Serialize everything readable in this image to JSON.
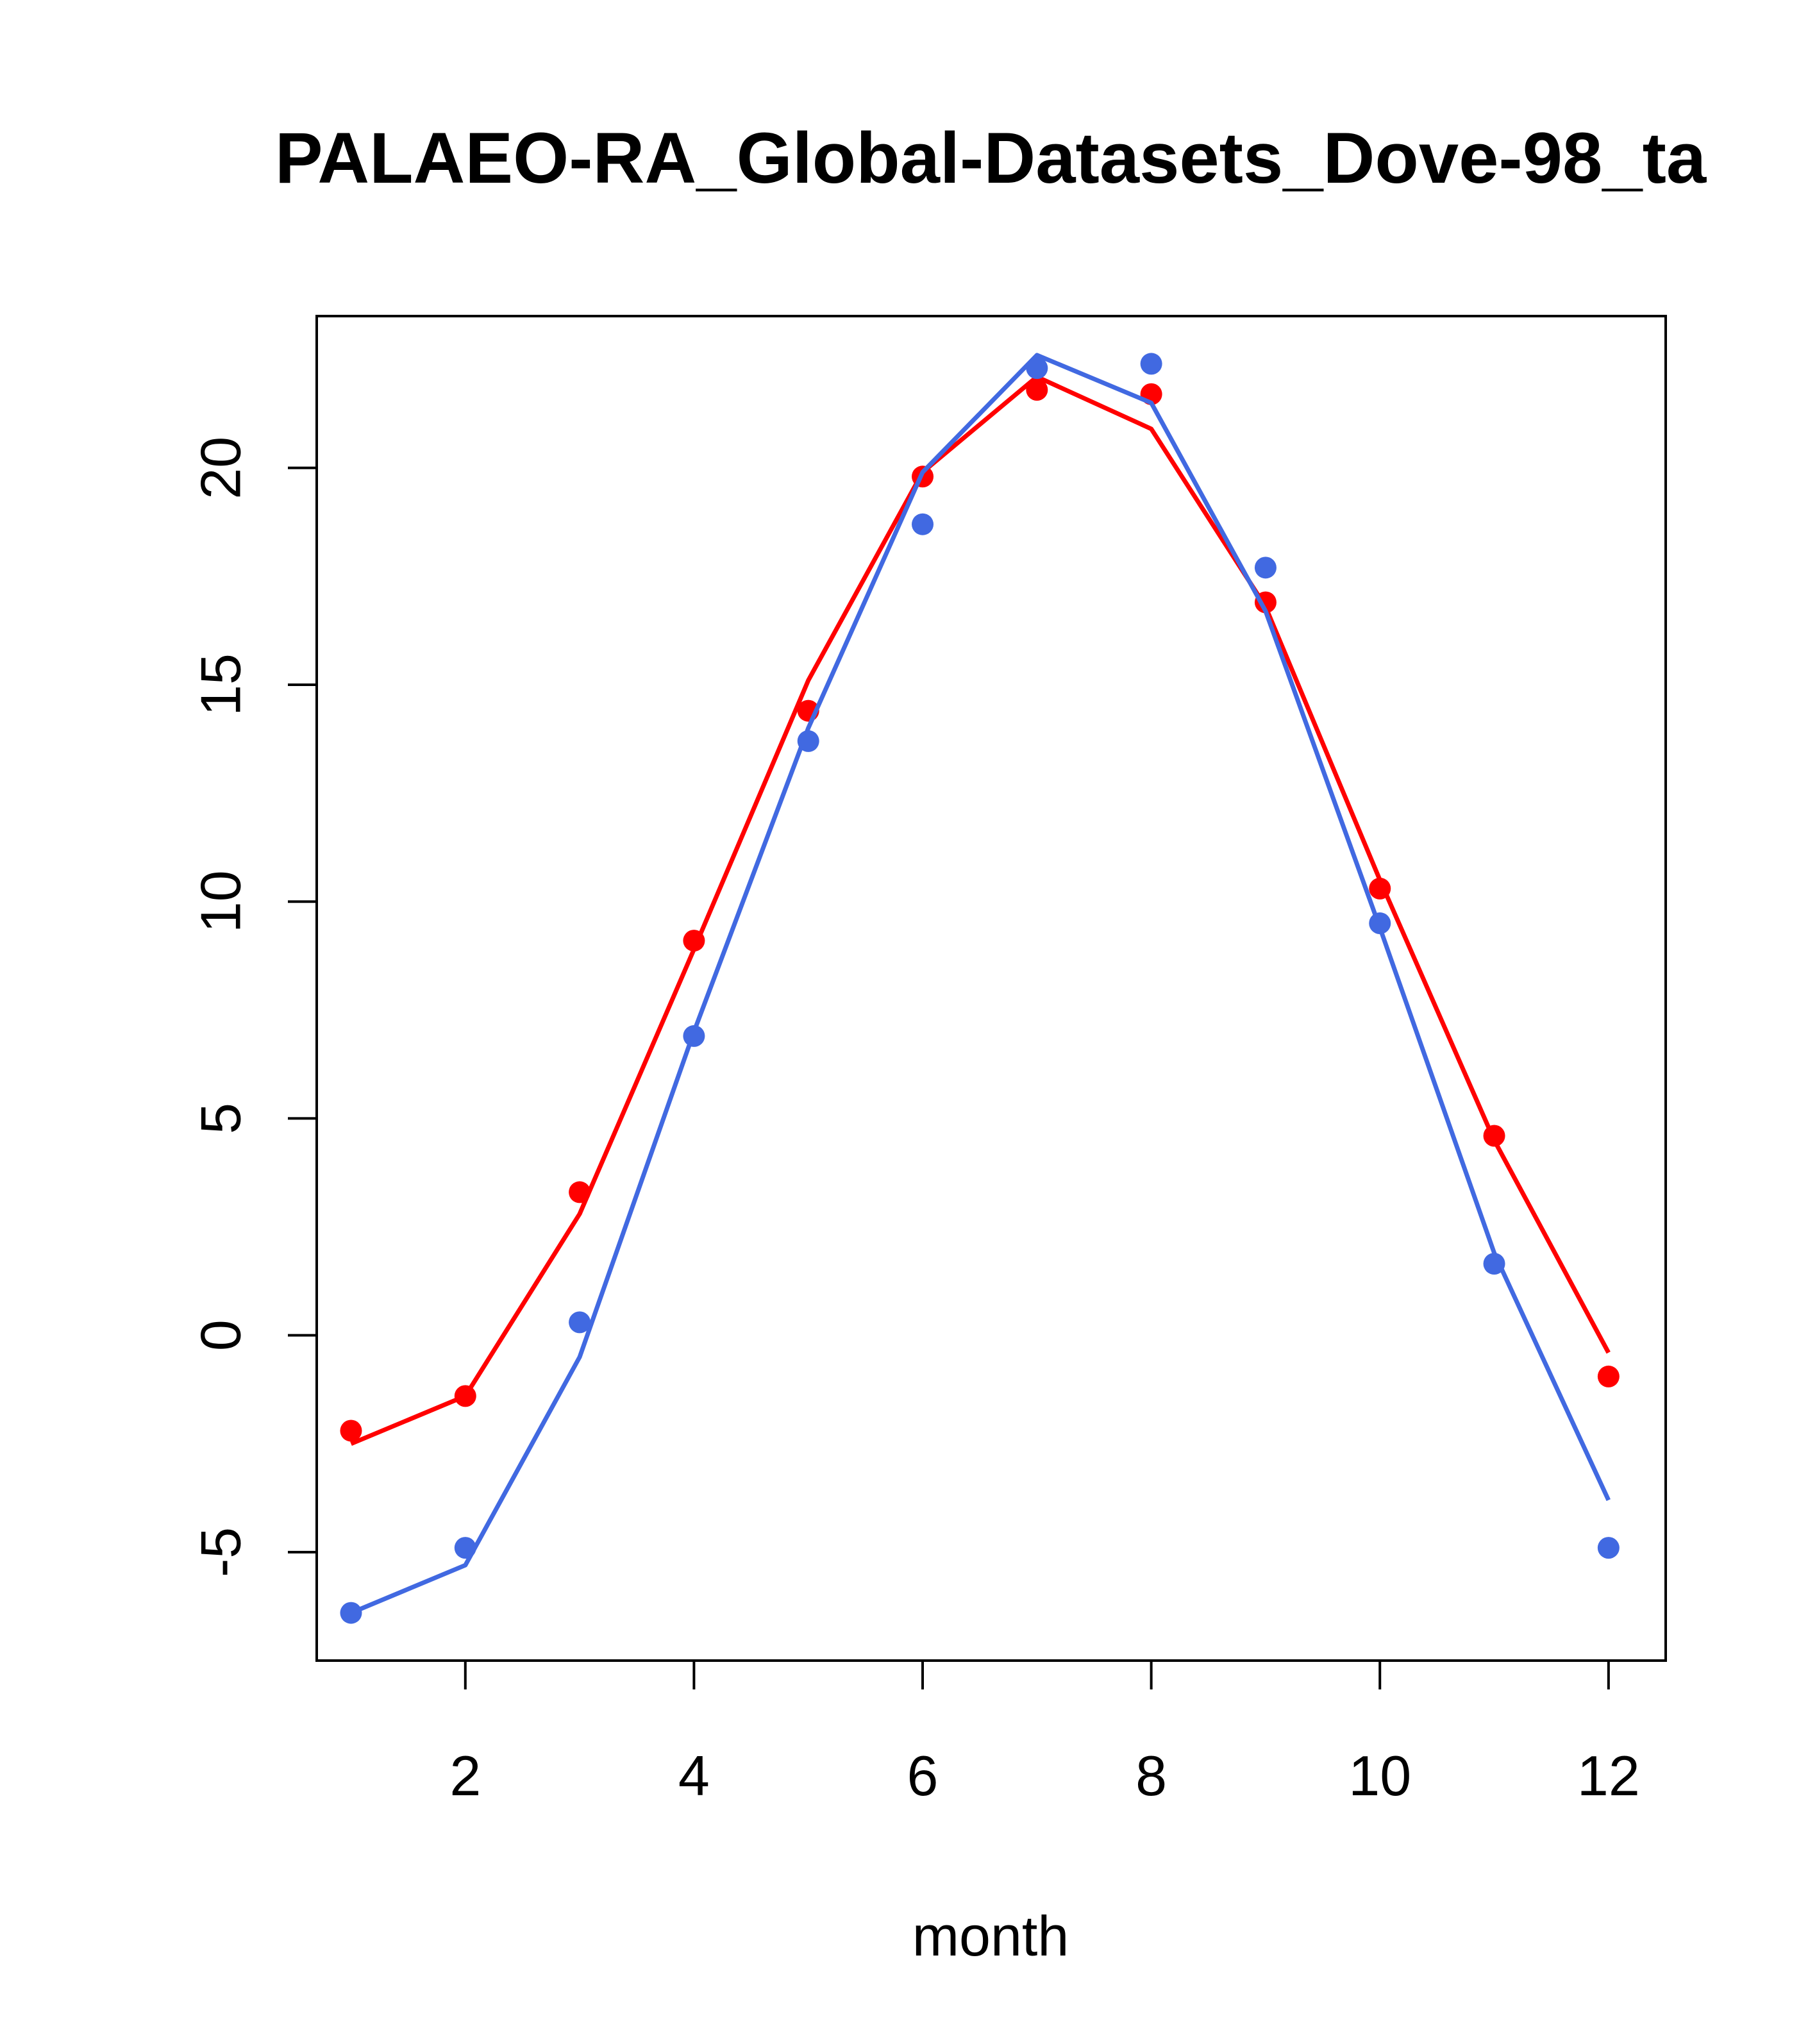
{
  "chart_data": {
    "type": "line",
    "title": "PALAEO-RA_Global-Datasets_Dove-98_ta",
    "xlabel": "month",
    "ylabel": "",
    "xlim": [
      0.7,
      12.5
    ],
    "ylim": [
      -7.5,
      23.5
    ],
    "x_ticks": [
      2,
      4,
      6,
      8,
      10,
      12
    ],
    "y_ticks": [
      -5,
      0,
      5,
      10,
      15,
      20
    ],
    "x": [
      1,
      2,
      3,
      4,
      5,
      6,
      7,
      8,
      9,
      10,
      11,
      12
    ],
    "series": [
      {
        "name": "red",
        "color": "#ff0000",
        "line": [
          -2.5,
          -1.4,
          2.8,
          8.9,
          15.1,
          19.9,
          22.1,
          20.9,
          16.8,
          10.5,
          4.5,
          -0.4
        ],
        "points": [
          -2.2,
          -1.4,
          3.3,
          9.1,
          14.4,
          19.8,
          21.8,
          21.7,
          16.9,
          10.3,
          4.6,
          -0.95
        ]
      },
      {
        "name": "blue",
        "color": "#4169e1",
        "line": [
          -6.4,
          -5.3,
          -0.5,
          7.0,
          14.0,
          19.9,
          22.6,
          21.5,
          16.7,
          9.4,
          1.9,
          -3.8
        ],
        "points": [
          -6.4,
          -4.9,
          0.3,
          6.9,
          13.7,
          18.7,
          22.3,
          22.4,
          17.7,
          9.5,
          1.65,
          -4.9
        ]
      }
    ]
  }
}
